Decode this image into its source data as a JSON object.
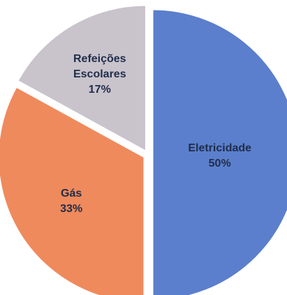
{
  "chart_data": {
    "type": "pie",
    "title": "",
    "slices": [
      {
        "label_lines": [
          "Eletricidade"
        ],
        "percent_label": "50%",
        "value": 50,
        "color": "#5b7fcc"
      },
      {
        "label_lines": [
          "Gás"
        ],
        "percent_label": "33%",
        "value": 33,
        "color": "#ef8a5d"
      },
      {
        "label_lines": [
          "Refeições",
          "Escolares"
        ],
        "percent_label": "17%",
        "value": 17,
        "color": "#c9c3cc"
      }
    ],
    "start_angle_deg": 0,
    "direction": "clockwise",
    "exploded": true,
    "separator_color": "#ffffff"
  }
}
